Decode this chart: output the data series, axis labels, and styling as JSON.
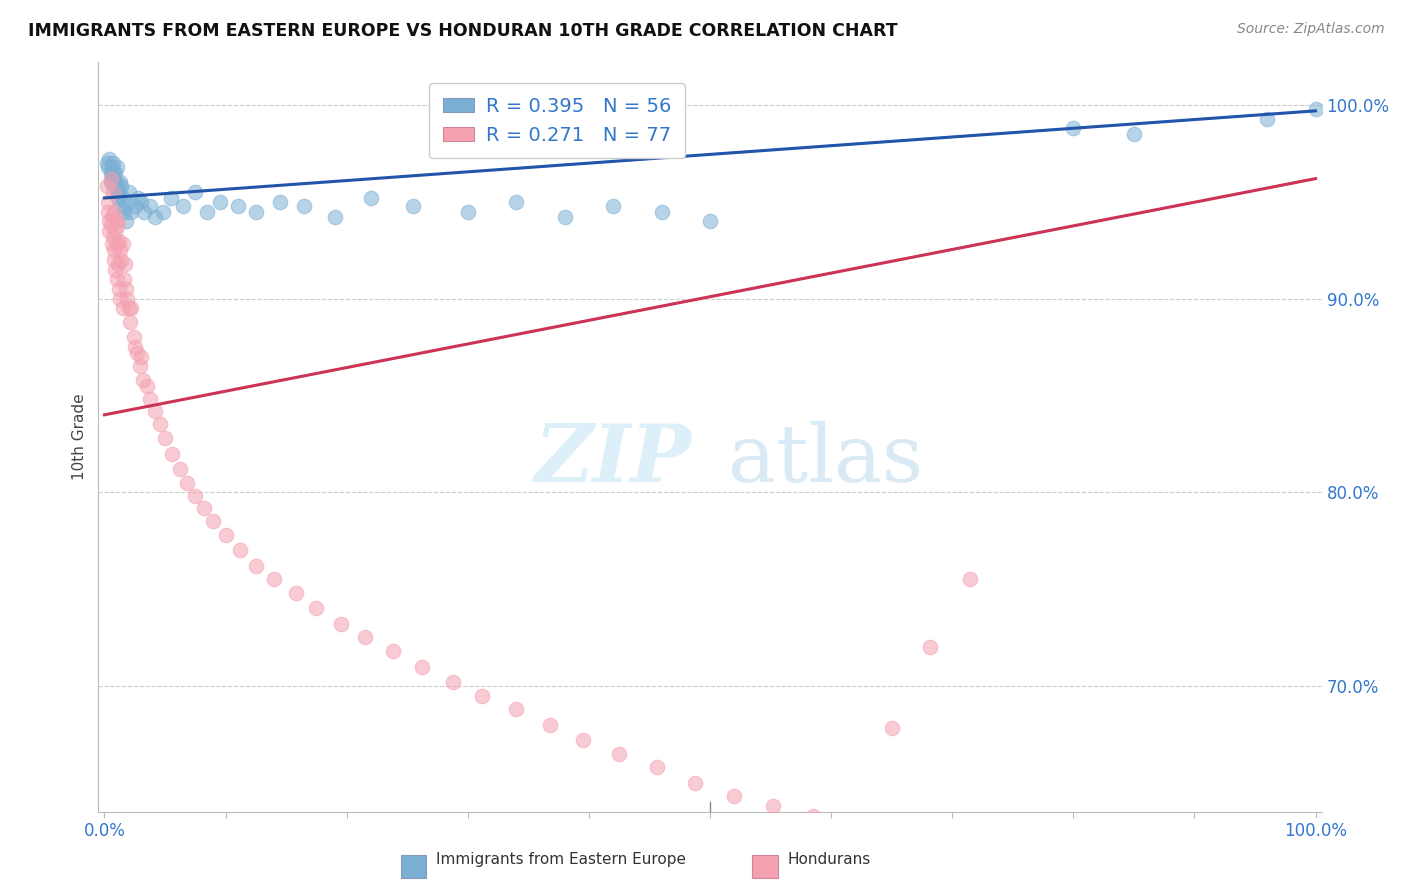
{
  "title": "IMMIGRANTS FROM EASTERN EUROPE VS HONDURAN 10TH GRADE CORRELATION CHART",
  "source": "Source: ZipAtlas.com",
  "ylabel": "10th Grade",
  "R1": 0.395,
  "N1": 56,
  "R2": 0.271,
  "N2": 77,
  "color_blue": "#7BAFD4",
  "color_pink": "#F4A0B0",
  "line_blue": "#2255AA",
  "line_pink": "#CC3355",
  "title_color": "#111111",
  "axis_label_color": "#3377CC",
  "legend1_label": "Immigrants from Eastern Europe",
  "legend2_label": "Hondurans",
  "xlim": [
    -0.005,
    1.005
  ],
  "ylim": [
    0.635,
    1.022
  ],
  "yticks": [
    0.7,
    0.8,
    0.9,
    1.0
  ],
  "ytick_labels": [
    "70.0%",
    "80.0%",
    "90.0%",
    "100.0%"
  ],
  "blue_x": [
    0.002,
    0.003,
    0.004,
    0.005,
    0.005,
    0.006,
    0.006,
    0.007,
    0.007,
    0.008,
    0.008,
    0.009,
    0.009,
    0.01,
    0.01,
    0.011,
    0.011,
    0.012,
    0.013,
    0.013,
    0.014,
    0.015,
    0.016,
    0.017,
    0.018,
    0.02,
    0.022,
    0.025,
    0.028,
    0.03,
    0.033,
    0.038,
    0.042,
    0.048,
    0.055,
    0.065,
    0.075,
    0.085,
    0.095,
    0.11,
    0.125,
    0.145,
    0.165,
    0.19,
    0.22,
    0.255,
    0.3,
    0.34,
    0.38,
    0.42,
    0.46,
    0.5,
    0.8,
    0.85,
    0.96,
    1.0
  ],
  "blue_y": [
    0.97,
    0.968,
    0.972,
    0.965,
    0.96,
    0.968,
    0.963,
    0.97,
    0.965,
    0.962,
    0.958,
    0.965,
    0.96,
    0.968,
    0.955,
    0.958,
    0.952,
    0.955,
    0.96,
    0.948,
    0.958,
    0.952,
    0.945,
    0.948,
    0.94,
    0.955,
    0.945,
    0.948,
    0.952,
    0.95,
    0.945,
    0.948,
    0.942,
    0.945,
    0.952,
    0.948,
    0.955,
    0.945,
    0.95,
    0.948,
    0.945,
    0.95,
    0.948,
    0.942,
    0.952,
    0.948,
    0.945,
    0.95,
    0.942,
    0.948,
    0.945,
    0.94,
    0.988,
    0.985,
    0.993,
    0.998
  ],
  "pink_x": [
    0.002,
    0.003,
    0.003,
    0.004,
    0.004,
    0.005,
    0.005,
    0.006,
    0.006,
    0.007,
    0.007,
    0.008,
    0.008,
    0.008,
    0.009,
    0.009,
    0.01,
    0.01,
    0.01,
    0.011,
    0.011,
    0.012,
    0.012,
    0.013,
    0.013,
    0.014,
    0.015,
    0.015,
    0.016,
    0.017,
    0.018,
    0.019,
    0.02,
    0.021,
    0.022,
    0.024,
    0.025,
    0.027,
    0.029,
    0.03,
    0.032,
    0.035,
    0.038,
    0.042,
    0.046,
    0.05,
    0.056,
    0.062,
    0.068,
    0.075,
    0.082,
    0.09,
    0.1,
    0.112,
    0.125,
    0.14,
    0.158,
    0.175,
    0.195,
    0.215,
    0.238,
    0.262,
    0.288,
    0.312,
    0.34,
    0.368,
    0.395,
    0.425,
    0.456,
    0.488,
    0.52,
    0.552,
    0.585,
    0.618,
    0.65,
    0.682,
    0.715
  ],
  "pink_y": [
    0.958,
    0.95,
    0.945,
    0.94,
    0.935,
    0.962,
    0.938,
    0.942,
    0.928,
    0.955,
    0.932,
    0.945,
    0.925,
    0.92,
    0.935,
    0.915,
    0.94,
    0.928,
    0.91,
    0.938,
    0.918,
    0.93,
    0.905,
    0.925,
    0.9,
    0.92,
    0.928,
    0.895,
    0.91,
    0.918,
    0.905,
    0.9,
    0.895,
    0.888,
    0.895,
    0.88,
    0.875,
    0.872,
    0.865,
    0.87,
    0.858,
    0.855,
    0.848,
    0.842,
    0.835,
    0.828,
    0.82,
    0.812,
    0.805,
    0.798,
    0.792,
    0.785,
    0.778,
    0.77,
    0.762,
    0.755,
    0.748,
    0.74,
    0.732,
    0.725,
    0.718,
    0.71,
    0.702,
    0.695,
    0.688,
    0.68,
    0.672,
    0.665,
    0.658,
    0.65,
    0.643,
    0.638,
    0.633,
    0.628,
    0.678,
    0.72,
    0.755
  ]
}
